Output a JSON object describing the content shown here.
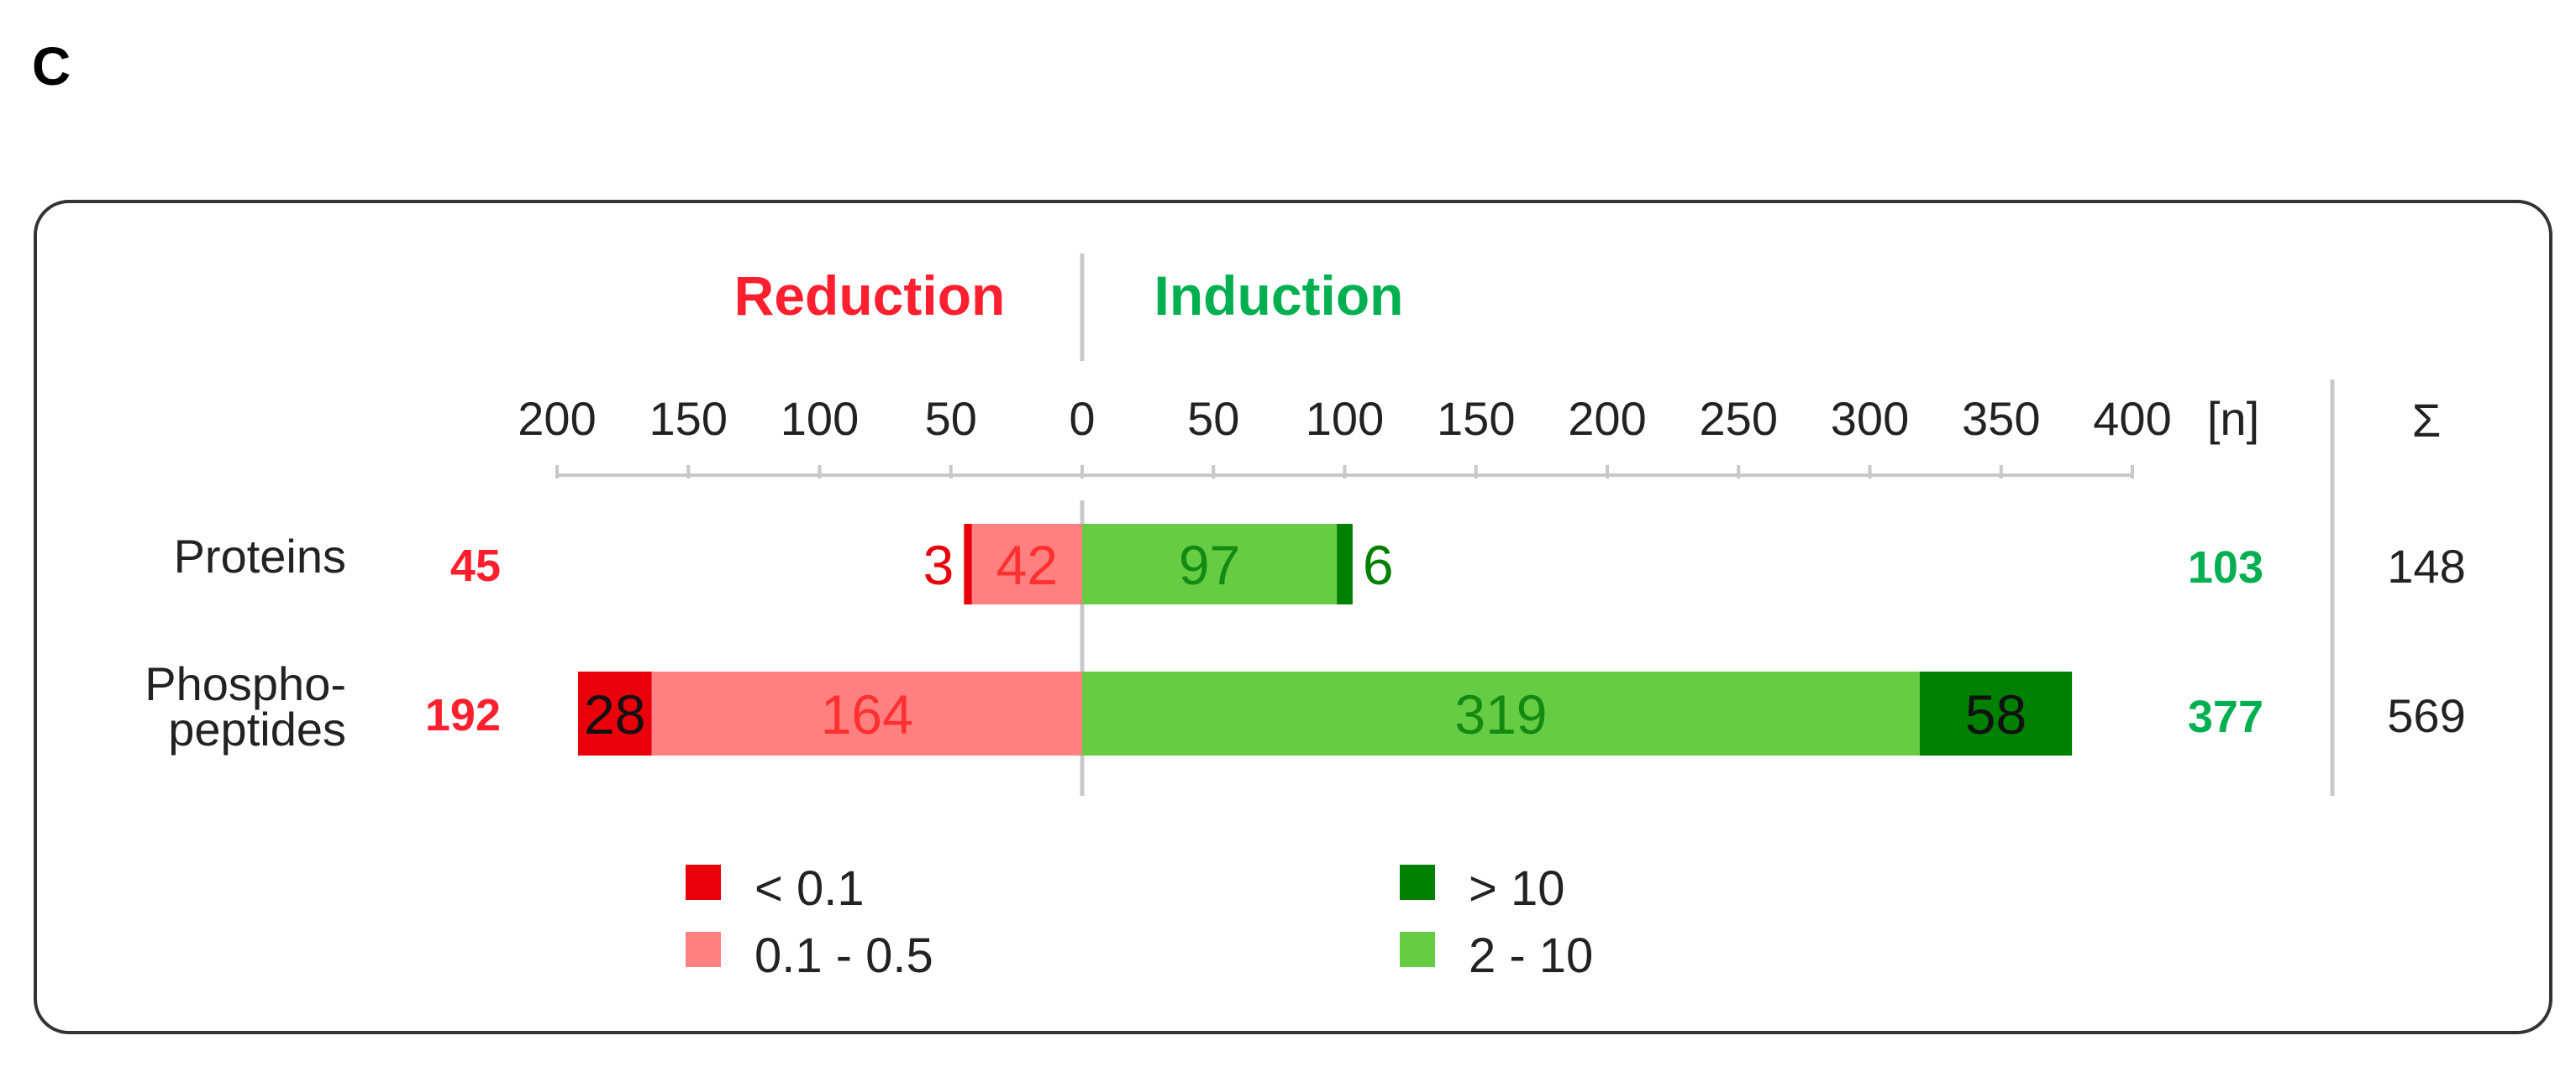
{
  "panel_label": "C",
  "headers": {
    "left": "Reduction",
    "right": "Induction",
    "unit": "[n]",
    "sum": "Σ"
  },
  "colors": {
    "reduction_text": "#ff1f2e",
    "induction_text": "#00b050",
    "strong_down": "#e8000b",
    "weak_down": "#ff8080",
    "weak_up": "#66cc44",
    "strong_up": "#008000",
    "weak_down_label": "#ff3030",
    "weak_up_label": "#138a13"
  },
  "chart_data": {
    "type": "bar",
    "orientation": "horizontal-diverging",
    "xaxis_ticks": [
      "200",
      "150",
      "100",
      "50",
      "0",
      "50",
      "100",
      "150",
      "200",
      "250",
      "300",
      "350",
      "400"
    ],
    "xlim": [
      -200,
      400
    ],
    "xlabel": "[n]",
    "rows": [
      {
        "label_lines": [
          "Proteins"
        ],
        "reduction_total": 45,
        "induction_total": 103,
        "sum": 148,
        "segments": {
          "strong_down": {
            "value": 3,
            "label": "3"
          },
          "weak_down": {
            "value": 42,
            "label": "42"
          },
          "weak_up": {
            "value": 97,
            "label": "97"
          },
          "strong_up": {
            "value": 6,
            "label": "6"
          }
        }
      },
      {
        "label_lines": [
          "Phospho-",
          "peptides"
        ],
        "reduction_total": 192,
        "induction_total": 377,
        "sum": 569,
        "segments": {
          "strong_down": {
            "value": 28,
            "label": "28"
          },
          "weak_down": {
            "value": 164,
            "label": "164"
          },
          "weak_up": {
            "value": 319,
            "label": "319"
          },
          "strong_up": {
            "value": 58,
            "label": "58"
          }
        }
      }
    ],
    "legend": [
      {
        "key": "strong_down",
        "label": "< 0.1"
      },
      {
        "key": "weak_down",
        "label": "0.1 - 0.5"
      },
      {
        "key": "strong_up",
        "label": "> 10"
      },
      {
        "key": "weak_up",
        "label": "2 - 10"
      }
    ],
    "grid": false
  }
}
